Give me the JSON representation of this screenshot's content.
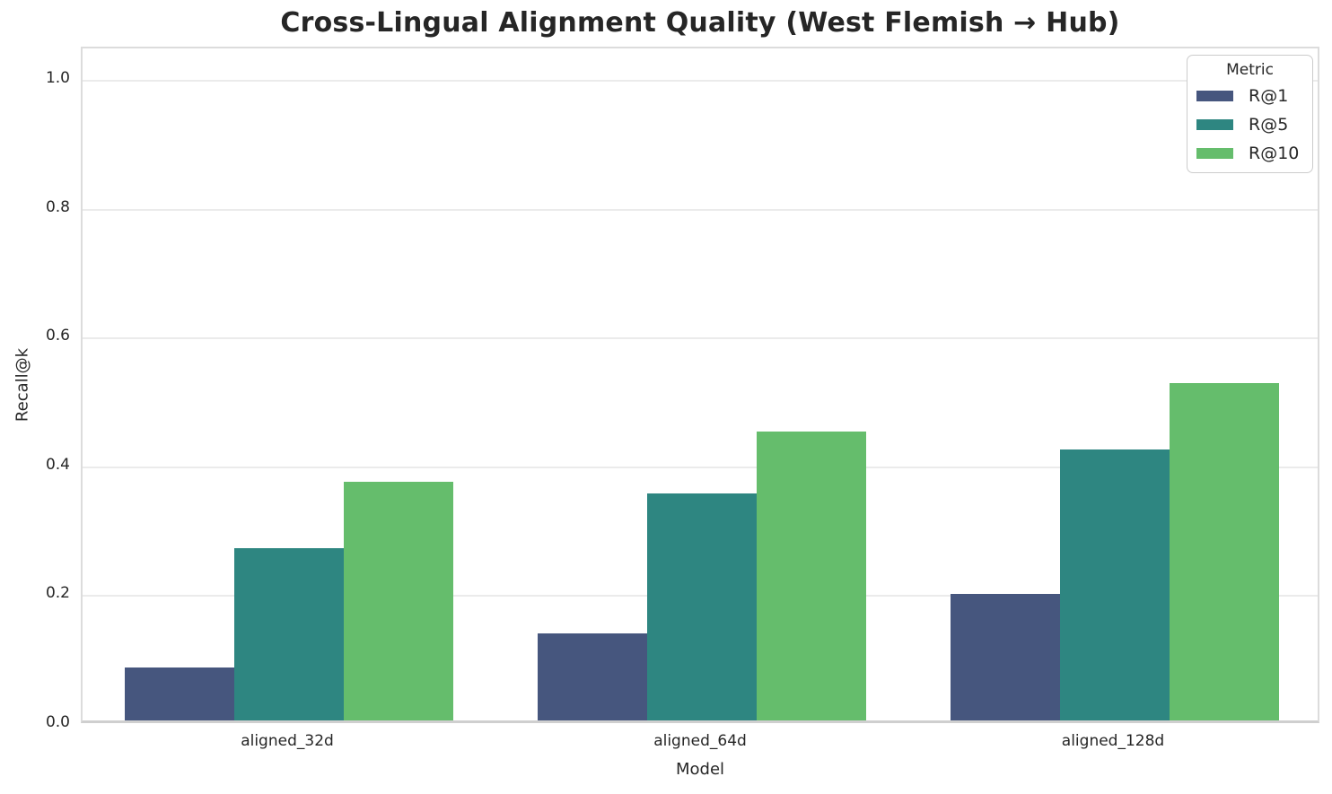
{
  "chart_data": {
    "type": "bar",
    "title": "Cross-Lingual Alignment Quality (West Flemish → Hub)",
    "xlabel": "Model",
    "ylabel": "Recall@k",
    "categories": [
      "aligned_32d",
      "aligned_64d",
      "aligned_128d"
    ],
    "series": [
      {
        "name": "R@1",
        "color": "#46567E",
        "values": [
          0.082,
          0.135,
          0.197
        ]
      },
      {
        "name": "R@5",
        "color": "#2E8681",
        "values": [
          0.268,
          0.352,
          0.421
        ]
      },
      {
        "name": "R@10",
        "color": "#65BD6C",
        "values": [
          0.371,
          0.448,
          0.524
        ]
      }
    ],
    "ylim": [
      0,
      1.05
    ],
    "yticks": [
      0.0,
      0.2,
      0.4,
      0.6,
      0.8,
      1.0
    ],
    "ytick_labels": [
      "0.0",
      "0.2",
      "0.4",
      "0.6",
      "0.8",
      "1.0"
    ],
    "grid": "horizontal",
    "legend": {
      "title": "Metric",
      "position": "upper right"
    },
    "colors": {
      "title_text": "#262626",
      "tick_text": "#262626",
      "gridline": "#ebebeb",
      "spine": "#dcdcdc",
      "background": "#ffffff"
    }
  }
}
